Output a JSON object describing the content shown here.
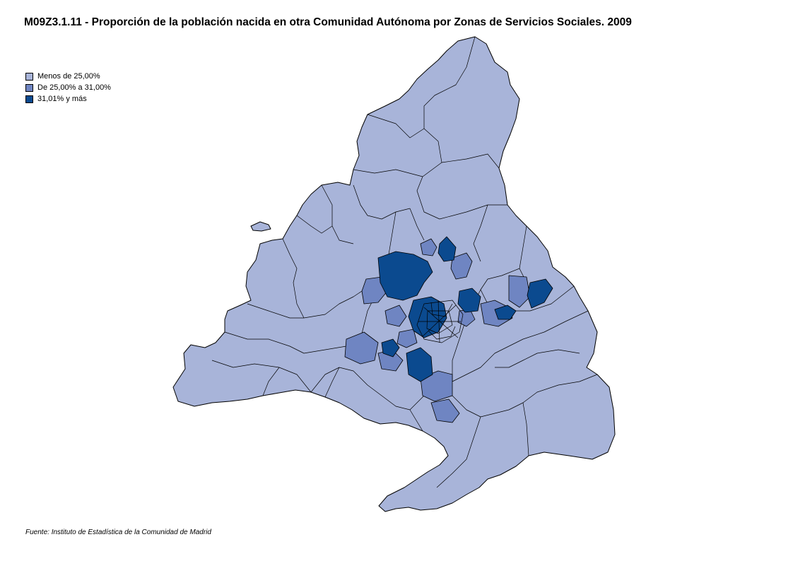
{
  "title": "M09Z3.1.11 - Proporción de la población nacida en otra Comunidad Autónoma por Zonas de Servicios Sociales. 2009",
  "legend": {
    "items": [
      {
        "label": "Menos de 25,00%",
        "color": "#a8b4d9"
      },
      {
        "label": "De 25,00% a 31,00%",
        "color": "#6f85c2"
      },
      {
        "label": "31,01% y más",
        "color": "#0b4a8f"
      }
    ]
  },
  "source": "Fuente: Instituto de Estadística de la Comunidad de Madrid",
  "colors": {
    "low": "#a8b4d9",
    "mid": "#6f85c2",
    "high": "#0b4a8f",
    "border": "#000000"
  }
}
